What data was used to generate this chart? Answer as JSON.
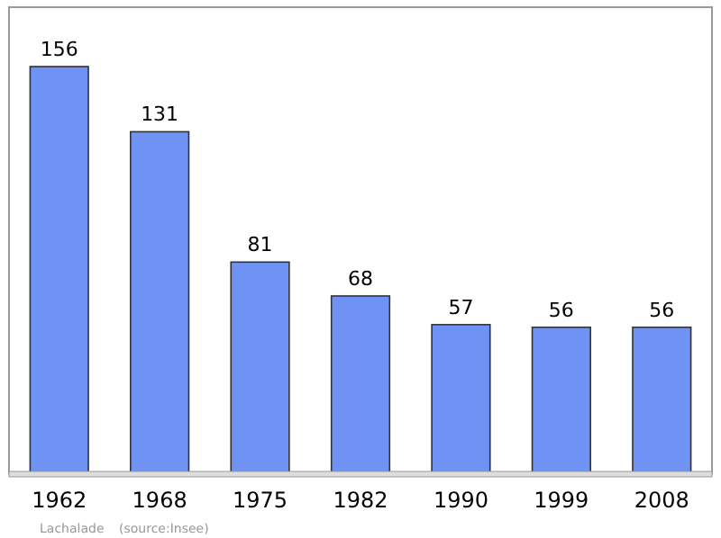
{
  "chart_data": {
    "type": "bar",
    "categories": [
      "1962",
      "1968",
      "1975",
      "1982",
      "1990",
      "1999",
      "2008"
    ],
    "values": [
      156,
      131,
      81,
      68,
      57,
      56,
      56
    ],
    "color": "#6f93f4",
    "data_labels": true,
    "grid": false,
    "annotations": [
      "Lachalade",
      "(source:Insee)"
    ]
  }
}
